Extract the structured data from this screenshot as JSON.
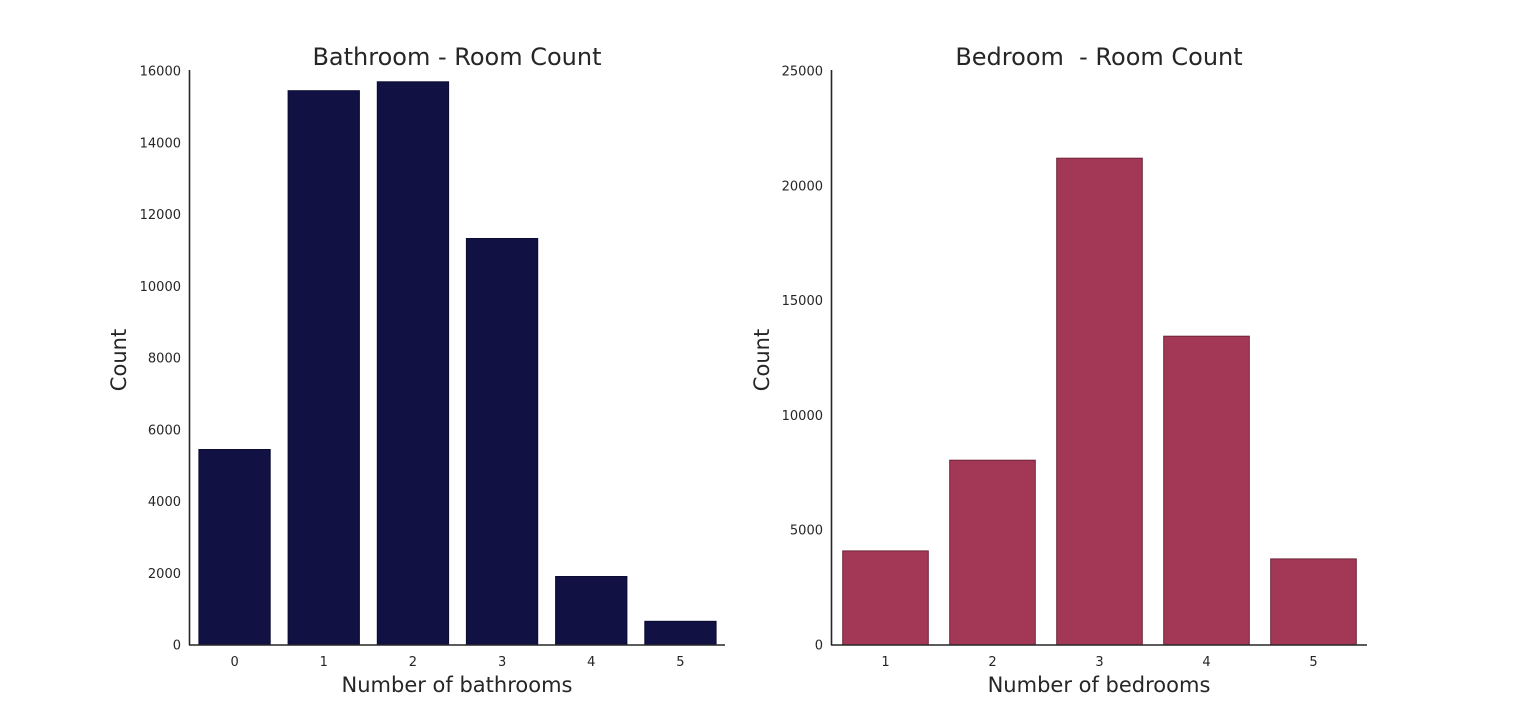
{
  "chart_data": [
    {
      "type": "bar",
      "title": "Bathroom - Room Count",
      "xlabel": "Number of bathrooms",
      "ylabel": "Count",
      "categories": [
        "0",
        "1",
        "2",
        "3",
        "4",
        "5"
      ],
      "values": [
        5450,
        15450,
        15700,
        11330,
        1910,
        660
      ],
      "ylim": [
        0,
        16000
      ],
      "yticks": [
        0,
        2000,
        4000,
        6000,
        8000,
        10000,
        12000,
        14000,
        16000
      ],
      "color": "#111144",
      "grid": false
    },
    {
      "type": "bar",
      "title": "Bedroom  - Room Count",
      "xlabel": "Number of bedrooms",
      "ylabel": "Count",
      "categories": [
        "1",
        "2",
        "3",
        "4",
        "5"
      ],
      "values": [
        4100,
        8050,
        21200,
        13450,
        3750
      ],
      "ylim": [
        0,
        25000
      ],
      "yticks": [
        0,
        5000,
        10000,
        15000,
        20000,
        25000
      ],
      "color": "#a23855",
      "grid": false
    }
  ]
}
